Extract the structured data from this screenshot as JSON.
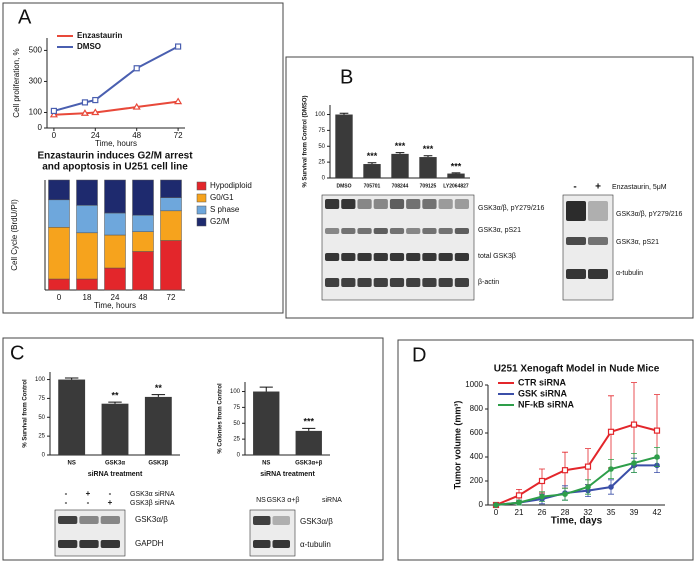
{
  "panels": [
    "A",
    "B",
    "C",
    "D"
  ],
  "chart_data": [
    {
      "type": "line",
      "xlabel": "Time, hours",
      "ylabel": "Cell proliferation, %",
      "x": [
        0,
        18,
        24,
        48,
        72
      ],
      "xlim": [
        -4,
        76
      ],
      "xticks": [
        0,
        24,
        48,
        72
      ],
      "ylim": [
        0,
        580
      ],
      "yticks": [
        0,
        100,
        300,
        500
      ],
      "legend": "upper left",
      "series": [
        {
          "name": "Enzastaurin",
          "color": "#e8493a",
          "marker": "triangle",
          "values": [
            85,
            95,
            100,
            135,
            170
          ]
        },
        {
          "name": "DMSO",
          "color": "#4a5fb0",
          "marker": "square",
          "values": [
            110,
            165,
            180,
            385,
            525
          ]
        }
      ]
    },
    {
      "type": "stacked_bar",
      "title": [
        "Enzastaurin induces G2/M arrest",
        "and apoptosis in U251 cell line"
      ],
      "xlabel": "Time, hours",
      "ylabel": "Cell Cycle (BrdU/PI)",
      "categories": [
        "0",
        "18",
        "24",
        "48",
        "72"
      ],
      "ylim": [
        0,
        100
      ],
      "legend": "right",
      "series": [
        {
          "name": "Hypodiploid",
          "color": "#e3262b",
          "values": [
            10,
            10,
            20,
            35,
            45
          ]
        },
        {
          "name": "G0/G1",
          "color": "#f6a31d",
          "values": [
            47,
            42,
            30,
            18,
            27
          ]
        },
        {
          "name": "S phase",
          "color": "#6ea7dc",
          "values": [
            25,
            25,
            20,
            15,
            12
          ]
        },
        {
          "name": "G2/M",
          "color": "#1e2a6e",
          "values": [
            18,
            23,
            30,
            32,
            16
          ]
        }
      ]
    },
    {
      "type": "bar",
      "ylabel": "% Survival from Control (DMSO)",
      "color": "#3a3a3a",
      "categories": [
        "DMSO",
        "705701",
        "708244",
        "709125",
        "LY2064827"
      ],
      "values": [
        100,
        22,
        38,
        33,
        7
      ],
      "errors": [
        2,
        2,
        2,
        2,
        1
      ],
      "annotations": [
        null,
        "***",
        "***",
        "***",
        "***"
      ],
      "ylim": [
        0,
        115
      ],
      "yticks": [
        0,
        25,
        50,
        75,
        100
      ]
    },
    {
      "type": "bar",
      "ylabel": "% Survival from Control",
      "xlabel": "siRNA treatment",
      "color": "#3a3a3a",
      "categories": [
        "NS",
        "GSK3α",
        "GSK3β"
      ],
      "values": [
        100,
        68,
        77
      ],
      "errors": [
        2,
        2,
        3
      ],
      "annotations": [
        null,
        "**",
        "**"
      ],
      "ylim": [
        0,
        110
      ],
      "yticks": [
        0,
        25,
        50,
        75,
        100
      ]
    },
    {
      "type": "bar",
      "ylabel": "% Colonies from Control",
      "xlabel": "siRNA treatment",
      "color": "#3a3a3a",
      "categories": [
        "NS",
        "GSK3α+β"
      ],
      "values": [
        100,
        38
      ],
      "errors": [
        7,
        4
      ],
      "annotations": [
        null,
        "***"
      ],
      "ylim": [
        0,
        115
      ],
      "yticks": [
        0,
        25,
        50,
        75,
        100
      ]
    },
    {
      "type": "line",
      "title": "U251 Xenogaft Model in Nude Mice",
      "xlabel": "Time, days",
      "ylabel": "Tumor volume (mm³)",
      "categories": [
        "0",
        "21",
        "26",
        "28",
        "32",
        "35",
        "39",
        "42"
      ],
      "ylim": [
        0,
        1000
      ],
      "yticks": [
        0,
        200,
        400,
        600,
        800,
        1000
      ],
      "legend": "upper left",
      "series": [
        {
          "name": "CTR siRNA",
          "color": "#e3262b",
          "marker": "square",
          "values": [
            0,
            80,
            200,
            290,
            320,
            610,
            670,
            620
          ],
          "errors": [
            0,
            50,
            100,
            150,
            150,
            300,
            350,
            300
          ]
        },
        {
          "name": "GSK siRNA",
          "color": "#3b4fa8",
          "marker": "circle",
          "values": [
            0,
            20,
            50,
            100,
            120,
            150,
            330,
            330
          ],
          "errors": [
            0,
            20,
            40,
            60,
            50,
            60,
            60,
            60
          ]
        },
        {
          "name": "NF-kB siRNA",
          "color": "#2e9e4a",
          "marker": "circle",
          "values": [
            0,
            20,
            70,
            90,
            150,
            300,
            350,
            400
          ],
          "errors": [
            0,
            20,
            40,
            50,
            60,
            80,
            80,
            80
          ]
        }
      ]
    }
  ],
  "blots": {
    "b_left_labels": [
      "GSK3α/β, pY279/216",
      "GSK3α, pS21",
      "total GSK3β",
      "β-actin"
    ],
    "b_right_lanes": [
      "-",
      "+"
    ],
    "b_right_treatment": "Enzastaurin, 5μM",
    "b_right_labels": [
      "GSK3α/β, pY279/216",
      "GSK3α, pS21",
      "α-tubulin"
    ],
    "c1_rows": [
      {
        "signs": [
          "-",
          "+",
          "-"
        ],
        "label": "GSK3α siRNA"
      },
      {
        "signs": [
          "-",
          "-",
          "+"
        ],
        "label": "GSK3β siRNA"
      }
    ],
    "c1_labels": [
      "GSK3α/β",
      "GAPDH"
    ],
    "c2_lanes": [
      "NS",
      "GSK3 α+β"
    ],
    "c2_head": "siRNA",
    "c2_labels": [
      "GSK3α/β",
      "α-tubulin"
    ]
  }
}
